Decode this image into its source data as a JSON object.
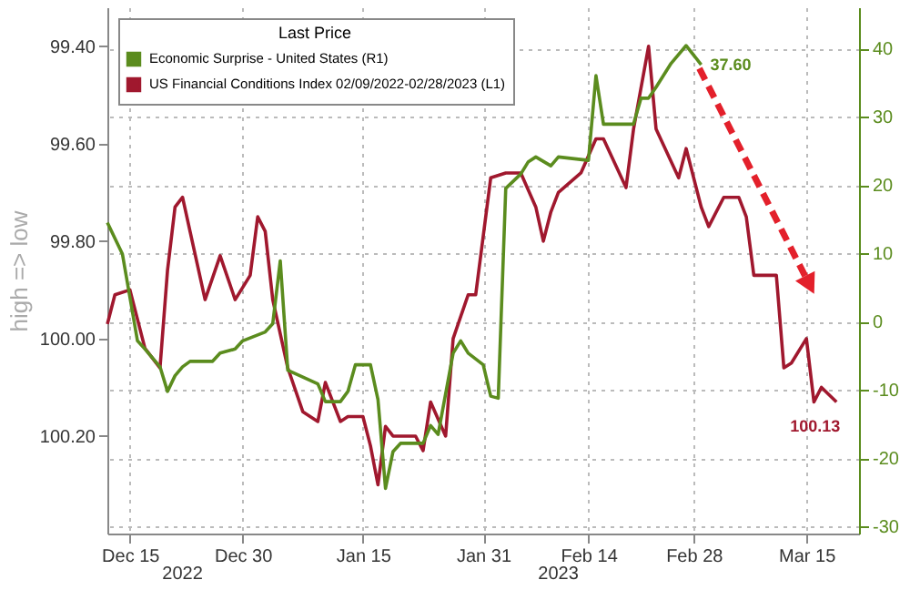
{
  "chart_data": {
    "type": "line",
    "ylabel": "high => low",
    "legend_title": "Last Price",
    "legend": "top left",
    "grid": true,
    "xlim": [
      "2022-12-12",
      "2023-03-22"
    ],
    "xticks": [
      {
        "value": "2022-12-15",
        "label": "Dec 15"
      },
      {
        "value": "2022-12-30",
        "label": "Dec 30"
      },
      {
        "value": "2023-01-15",
        "label": "Jan 15"
      },
      {
        "value": "2023-01-31",
        "label": "Jan 31"
      },
      {
        "value": "2023-02-14",
        "label": "Feb 14"
      },
      {
        "value": "2023-02-28",
        "label": "Feb 28"
      },
      {
        "value": "2023-03-15",
        "label": "Mar 15"
      }
    ],
    "ylim": [
      100.4,
      99.32
    ],
    "yticks": [
      {
        "value": 99.4,
        "label": "99.40"
      },
      {
        "value": 99.6,
        "label": "99.60"
      },
      {
        "value": 99.8,
        "label": "99.80"
      },
      {
        "value": 100.0,
        "label": "100.00"
      },
      {
        "value": 100.2,
        "label": "100.20"
      }
    ],
    "y2lim": [
      -31,
      46
    ],
    "y2ticks": [
      -30,
      -20,
      -10,
      0,
      10,
      20,
      30,
      40
    ],
    "annotations": [
      "2022",
      "2023"
    ],
    "series": [
      {
        "name": "Economic Surprise - United States (R1)",
        "color": "#5b8c1e",
        "axis": "y2",
        "x": [
          "2022-12-12",
          "2022-12-14",
          "2022-12-16",
          "2022-12-17",
          "2022-12-19",
          "2022-12-20",
          "2022-12-21",
          "2022-12-22",
          "2022-12-23",
          "2022-12-26",
          "2022-12-27",
          "2022-12-29",
          "2022-12-30",
          "2023-01-02",
          "2023-01-03",
          "2023-01-04",
          "2023-01-05",
          "2023-01-09",
          "2023-01-10",
          "2023-01-12",
          "2023-01-13",
          "2023-01-14",
          "2023-01-16",
          "2023-01-17",
          "2023-01-18",
          "2023-01-19",
          "2023-01-20",
          "2023-01-23",
          "2023-01-24",
          "2023-01-25",
          "2023-01-27",
          "2023-01-28",
          "2023-01-29",
          "2023-01-31",
          "2023-02-01",
          "2023-02-02",
          "2023-02-03",
          "2023-02-05",
          "2023-02-06",
          "2023-02-07",
          "2023-02-09",
          "2023-02-10",
          "2023-02-14",
          "2023-02-15",
          "2023-02-16",
          "2023-02-20",
          "2023-02-21",
          "2023-02-22",
          "2023-02-23",
          "2023-02-25",
          "2023-02-27",
          "2023-03-01"
        ],
        "values": [
          14.5,
          9.9,
          -2.8,
          -4,
          -6.6,
          -10.2,
          -7.9,
          -6.6,
          -5.8,
          -5.8,
          -4.6,
          -4,
          -2.8,
          -1.5,
          -0.3,
          8.9,
          -7.1,
          -9.1,
          -11.7,
          -11.7,
          -10.2,
          -6.3,
          -6.3,
          -11.4,
          -24.4,
          -19,
          -17.8,
          -17.8,
          -15.2,
          -16.5,
          -4.6,
          -2.8,
          -4.6,
          -6.3,
          -10.9,
          -11.2,
          19.5,
          21.6,
          23.4,
          24.1,
          22.8,
          24.1,
          23.6,
          36.0,
          28.9,
          28.9,
          32.7,
          32.7,
          34.3,
          37.8,
          40.4,
          37.6
        ],
        "value_labels": [
          null,
          null,
          null,
          null,
          null,
          null,
          null,
          null,
          null,
          null,
          null,
          null,
          null,
          null,
          null,
          null,
          null,
          null,
          null,
          null,
          null,
          null,
          null,
          null,
          null,
          null,
          null,
          null,
          null,
          null,
          null,
          null,
          null,
          null,
          null,
          null,
          null,
          null,
          null,
          null,
          null,
          null,
          null,
          null,
          null,
          null,
          null,
          null,
          null,
          null,
          null,
          "37.60"
        ]
      },
      {
        "name": "US Financial Conditions Index 02/09/2022-02/28/2023 (L1)",
        "color": "#a0182e",
        "axis": "y",
        "x": [
          "2022-12-12",
          "2022-12-13",
          "2022-12-15",
          "2022-12-17",
          "2022-12-19",
          "2022-12-20",
          "2022-12-21",
          "2022-12-22",
          "2022-12-25",
          "2022-12-27",
          "2022-12-29",
          "2022-12-31",
          "2023-01-01",
          "2023-01-02",
          "2023-01-03",
          "2023-01-05",
          "2023-01-07",
          "2023-01-09",
          "2023-01-10",
          "2023-01-12",
          "2023-01-13",
          "2023-01-15",
          "2023-01-16",
          "2023-01-17",
          "2023-01-18",
          "2023-01-19",
          "2023-01-22",
          "2023-01-23",
          "2023-01-24",
          "2023-01-26",
          "2023-01-27",
          "2023-01-29",
          "2023-01-30",
          "2023-02-01",
          "2023-02-03",
          "2023-02-05",
          "2023-02-07",
          "2023-02-08",
          "2023-02-09",
          "2023-02-10",
          "2023-02-13",
          "2023-02-15",
          "2023-02-16",
          "2023-02-19",
          "2023-02-20",
          "2023-02-22",
          "2023-02-23",
          "2023-02-26",
          "2023-02-27",
          "2023-03-01",
          "2023-03-02",
          "2023-03-04",
          "2023-03-06",
          "2023-03-07",
          "2023-03-08",
          "2023-03-11",
          "2023-03-12",
          "2023-03-13",
          "2023-03-15",
          "2023-03-16",
          "2023-03-17",
          "2023-03-19"
        ],
        "values": [
          99.97,
          99.91,
          99.9,
          100.02,
          100.06,
          99.86,
          99.73,
          99.71,
          99.92,
          99.83,
          99.92,
          99.87,
          99.75,
          99.78,
          99.92,
          100.06,
          100.15,
          100.17,
          100.09,
          100.17,
          100.16,
          100.16,
          100.22,
          100.3,
          100.18,
          100.2,
          100.2,
          100.23,
          100.13,
          100.2,
          100.0,
          99.91,
          99.91,
          99.67,
          99.66,
          99.66,
          99.73,
          99.8,
          99.74,
          99.7,
          99.66,
          99.59,
          99.59,
          99.69,
          99.57,
          99.4,
          99.57,
          99.67,
          99.61,
          99.73,
          99.77,
          99.71,
          99.71,
          99.75,
          99.87,
          99.87,
          100.06,
          100.05,
          100.0,
          100.13,
          100.1,
          100.13
        ],
        "value_labels": [
          null,
          null,
          null,
          null,
          null,
          null,
          null,
          null,
          null,
          null,
          null,
          null,
          null,
          null,
          null,
          null,
          null,
          null,
          null,
          null,
          null,
          null,
          null,
          null,
          null,
          null,
          null,
          null,
          null,
          null,
          null,
          null,
          null,
          null,
          null,
          null,
          null,
          null,
          null,
          null,
          null,
          null,
          null,
          null,
          null,
          null,
          null,
          null,
          null,
          null,
          null,
          null,
          null,
          null,
          null,
          null,
          null,
          null,
          null,
          null,
          null,
          "100.13"
        ]
      }
    ]
  }
}
